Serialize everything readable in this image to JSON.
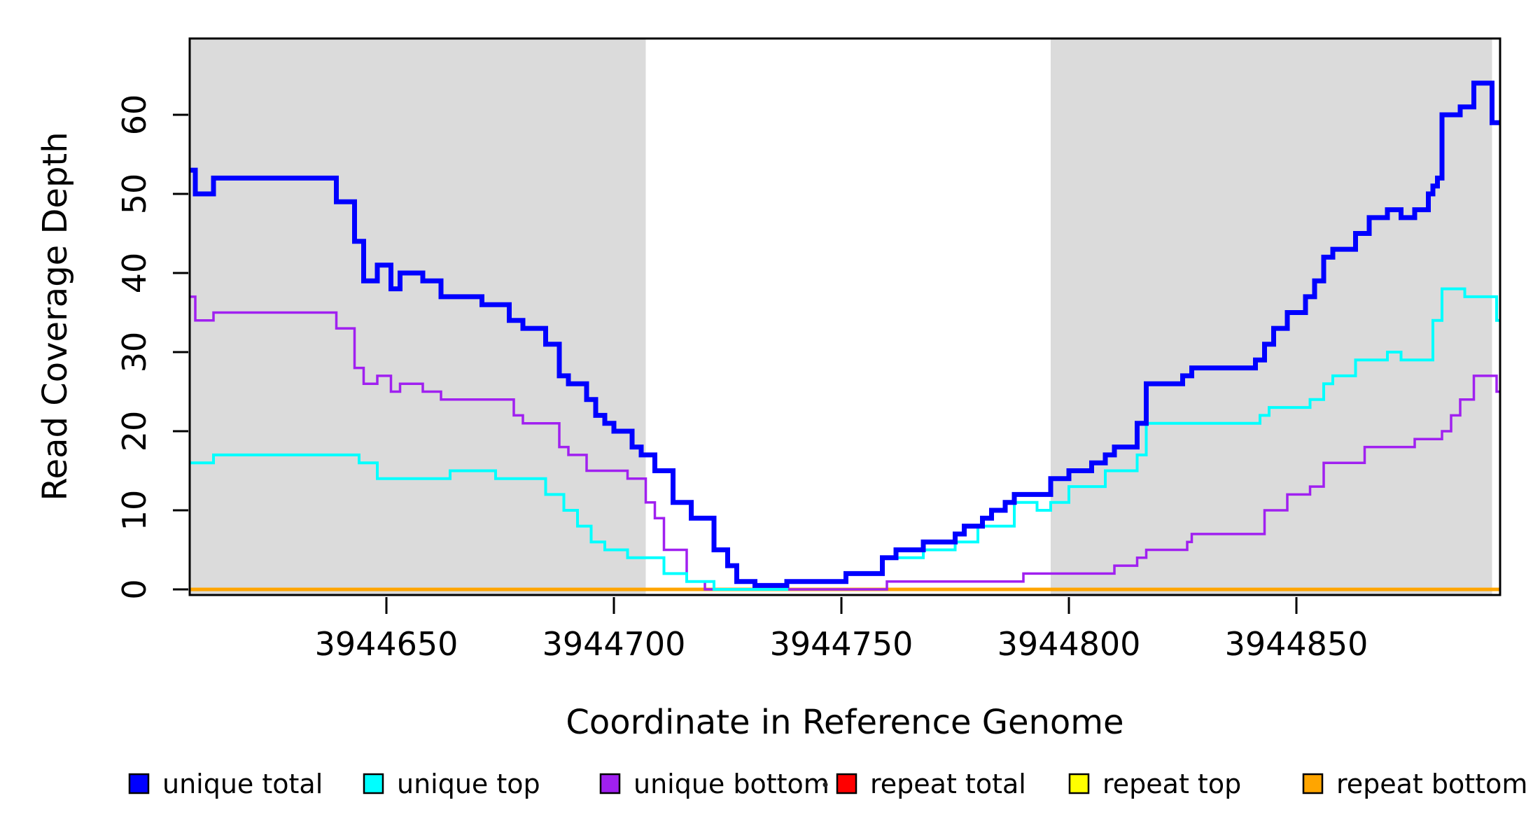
{
  "chart_data": {
    "type": "line",
    "subtype": "step",
    "title": "",
    "xlabel": "Coordinate in Reference Genome",
    "ylabel": "Read Coverage Depth",
    "xlim": [
      3944606,
      3944895
    ],
    "ylim": [
      0,
      69
    ],
    "grid": false,
    "legend_position": "bottom",
    "x_ticks": [
      3944650,
      3944700,
      3944750,
      3944800,
      3944850
    ],
    "x_tick_labels": [
      "3944650",
      "3944700",
      "3944750",
      "3944800",
      "3944850"
    ],
    "y_ticks": [
      0,
      10,
      20,
      30,
      40,
      50,
      60
    ],
    "y_tick_labels": [
      "0",
      "10",
      "20",
      "30",
      "40",
      "50",
      "60"
    ],
    "shaded_regions": [
      {
        "name": "left-unique-flank",
        "x1": 3944606,
        "x2": 3944707,
        "color": "#DBDBDB"
      },
      {
        "name": "right-unique-flank",
        "x1": 3944796,
        "x2": 3944893,
        "color": "#DBDBDB"
      }
    ],
    "series": [
      {
        "name": "repeat total",
        "color": "#FF0000",
        "lw": 4,
        "points": [
          [
            3944606,
            0
          ],
          [
            3944895,
            0
          ]
        ]
      },
      {
        "name": "repeat top",
        "color": "#FFFF00",
        "lw": 4,
        "points": [
          [
            3944606,
            0
          ],
          [
            3944895,
            0
          ]
        ]
      },
      {
        "name": "repeat bottom",
        "color": "#FFA500",
        "lw": 5,
        "points": [
          [
            3944606,
            0
          ],
          [
            3944895,
            0
          ]
        ]
      },
      {
        "name": "unique bottom",
        "color": "#A020F0",
        "lw": 3.5,
        "points": [
          [
            3944606,
            37
          ],
          [
            3944608,
            34
          ],
          [
            3944612,
            35
          ],
          [
            3944639,
            33
          ],
          [
            3944643,
            28
          ],
          [
            3944645,
            26
          ],
          [
            3944648,
            27
          ],
          [
            3944651,
            25
          ],
          [
            3944653,
            26
          ],
          [
            3944658,
            25
          ],
          [
            3944662,
            24
          ],
          [
            3944678,
            22
          ],
          [
            3944680,
            21
          ],
          [
            3944688,
            18
          ],
          [
            3944690,
            17
          ],
          [
            3944694,
            15
          ],
          [
            3944703,
            14
          ],
          [
            3944707,
            11
          ],
          [
            3944709,
            9
          ],
          [
            3944711,
            5
          ],
          [
            3944716,
            1
          ],
          [
            3944720,
            0
          ],
          [
            3944760,
            1
          ],
          [
            3944790,
            2
          ],
          [
            3944810,
            3
          ],
          [
            3944815,
            4
          ],
          [
            3944817,
            5
          ],
          [
            3944826,
            6
          ],
          [
            3944827,
            7
          ],
          [
            3944843,
            10
          ],
          [
            3944848,
            12
          ],
          [
            3944853,
            13
          ],
          [
            3944856,
            16
          ],
          [
            3944865,
            18
          ],
          [
            3944876,
            19
          ],
          [
            3944882,
            20
          ],
          [
            3944884,
            22
          ],
          [
            3944886,
            24
          ],
          [
            3944889,
            27
          ],
          [
            3944894,
            25
          ],
          [
            3944895,
            25
          ]
        ]
      },
      {
        "name": "unique top",
        "color": "#00FFFF",
        "lw": 4,
        "points": [
          [
            3944606,
            16
          ],
          [
            3944612,
            17
          ],
          [
            3944644,
            16
          ],
          [
            3944648,
            14
          ],
          [
            3944664,
            15
          ],
          [
            3944674,
            14
          ],
          [
            3944685,
            12
          ],
          [
            3944689,
            10
          ],
          [
            3944692,
            8
          ],
          [
            3944695,
            6
          ],
          [
            3944698,
            5
          ],
          [
            3944703,
            4
          ],
          [
            3944711,
            2
          ],
          [
            3944716,
            1
          ],
          [
            3944722,
            0
          ],
          [
            3944738,
            1
          ],
          [
            3944751,
            2
          ],
          [
            3944759,
            4
          ],
          [
            3944768,
            5
          ],
          [
            3944775,
            6
          ],
          [
            3944780,
            8
          ],
          [
            3944788,
            11
          ],
          [
            3944793,
            10
          ],
          [
            3944796,
            11
          ],
          [
            3944800,
            13
          ],
          [
            3944808,
            15
          ],
          [
            3944815,
            17
          ],
          [
            3944817,
            21
          ],
          [
            3944842,
            22
          ],
          [
            3944844,
            23
          ],
          [
            3944853,
            24
          ],
          [
            3944856,
            26
          ],
          [
            3944858,
            27
          ],
          [
            3944863,
            29
          ],
          [
            3944870,
            30
          ],
          [
            3944873,
            29
          ],
          [
            3944880,
            34
          ],
          [
            3944882,
            38
          ],
          [
            3944887,
            37
          ],
          [
            3944894,
            34
          ],
          [
            3944895,
            34
          ]
        ]
      },
      {
        "name": "unique total",
        "color": "#0000FF",
        "lw": 7,
        "points": [
          [
            3944606,
            53
          ],
          [
            3944608,
            50
          ],
          [
            3944612,
            52
          ],
          [
            3944639,
            49
          ],
          [
            3944643,
            44
          ],
          [
            3944645,
            39
          ],
          [
            3944648,
            41
          ],
          [
            3944651,
            38
          ],
          [
            3944653,
            40
          ],
          [
            3944658,
            39
          ],
          [
            3944662,
            37
          ],
          [
            3944671,
            36
          ],
          [
            3944677,
            34
          ],
          [
            3944680,
            33
          ],
          [
            3944685,
            31
          ],
          [
            3944688,
            27
          ],
          [
            3944690,
            26
          ],
          [
            3944694,
            24
          ],
          [
            3944696,
            22
          ],
          [
            3944698,
            21
          ],
          [
            3944700,
            20
          ],
          [
            3944704,
            18
          ],
          [
            3944706,
            17
          ],
          [
            3944709,
            15
          ],
          [
            3944713,
            11
          ],
          [
            3944717,
            9
          ],
          [
            3944722,
            5
          ],
          [
            3944725,
            3
          ],
          [
            3944727,
            1
          ],
          [
            3944731,
            0.5
          ],
          [
            3944738,
            1
          ],
          [
            3944751,
            2
          ],
          [
            3944759,
            4
          ],
          [
            3944762,
            5
          ],
          [
            3944768,
            6
          ],
          [
            3944775,
            7
          ],
          [
            3944777,
            8
          ],
          [
            3944781,
            9
          ],
          [
            3944783,
            10
          ],
          [
            3944786,
            11
          ],
          [
            3944788,
            12
          ],
          [
            3944796,
            14
          ],
          [
            3944800,
            15
          ],
          [
            3944805,
            16
          ],
          [
            3944808,
            17
          ],
          [
            3944810,
            18
          ],
          [
            3944815,
            21
          ],
          [
            3944817,
            26
          ],
          [
            3944825,
            27
          ],
          [
            3944827,
            28
          ],
          [
            3944841,
            29
          ],
          [
            3944843,
            31
          ],
          [
            3944845,
            33
          ],
          [
            3944848,
            35
          ],
          [
            3944852,
            37
          ],
          [
            3944854,
            39
          ],
          [
            3944856,
            42
          ],
          [
            3944858,
            43
          ],
          [
            3944863,
            45
          ],
          [
            3944866,
            47
          ],
          [
            3944870,
            48
          ],
          [
            3944873,
            47
          ],
          [
            3944876,
            48
          ],
          [
            3944879,
            50
          ],
          [
            3944880,
            51
          ],
          [
            3944881,
            52
          ],
          [
            3944882,
            60
          ],
          [
            3944886,
            61
          ],
          [
            3944889,
            64
          ],
          [
            3944893,
            59
          ],
          [
            3944895,
            59
          ]
        ]
      }
    ]
  },
  "legend": {
    "entries": [
      {
        "label": "unique total",
        "color": "#0000FF"
      },
      {
        "label": "unique top",
        "color": "#00FFFF"
      },
      {
        "label": "unique bottom",
        "color": "#A020F0"
      },
      {
        "label": "repeat total",
        "color": "#FF0000"
      },
      {
        "label": "repeat top",
        "color": "#FFFF00"
      },
      {
        "label": "repeat bottom",
        "color": "#FFA500"
      }
    ]
  }
}
